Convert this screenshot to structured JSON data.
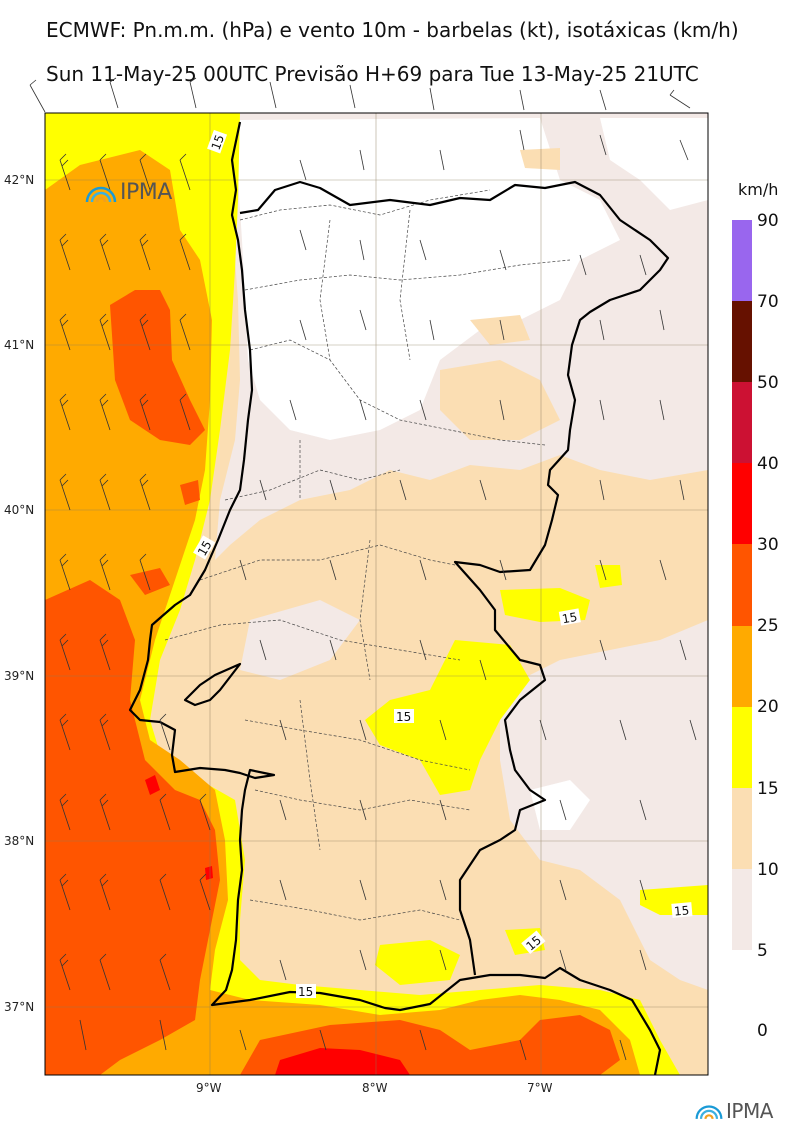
{
  "header": {
    "line1": "ECMWF: Pn.m.m. (hPa) e vento 10m - barbelas (kt), isotáxicas (km/h)",
    "line2": "Sun 11-May-25 00UTC Previsão H+69 para Tue 13-May-25 21UTC"
  },
  "map": {
    "lat_labels": [
      "42°N",
      "41°N",
      "40°N",
      "39°N",
      "38°N",
      "37°N"
    ],
    "lon_labels": [
      "9°W",
      "8°W",
      "7°W"
    ],
    "isotach_labels": [
      "15",
      "15",
      "15",
      "15",
      "15",
      "15",
      "15"
    ],
    "colors": {
      "c5_10": "#f3e9e6",
      "c10_15": "#fbdeb3",
      "c15_20": "#ffff00",
      "c20_25": "#ffaa00",
      "c25_30": "#ff5500",
      "c30_40": "#ff0000",
      "c40_50": "#cc1133",
      "c50_70": "#661100",
      "c70_90": "#9966ee"
    }
  },
  "legend": {
    "unit": "km/h",
    "labels": [
      "90",
      "70",
      "50",
      "40",
      "30",
      "25",
      "20",
      "15",
      "10",
      "5",
      "0"
    ]
  },
  "logo": {
    "text": "IPMA",
    "icon": "ipma-logo-icon"
  }
}
